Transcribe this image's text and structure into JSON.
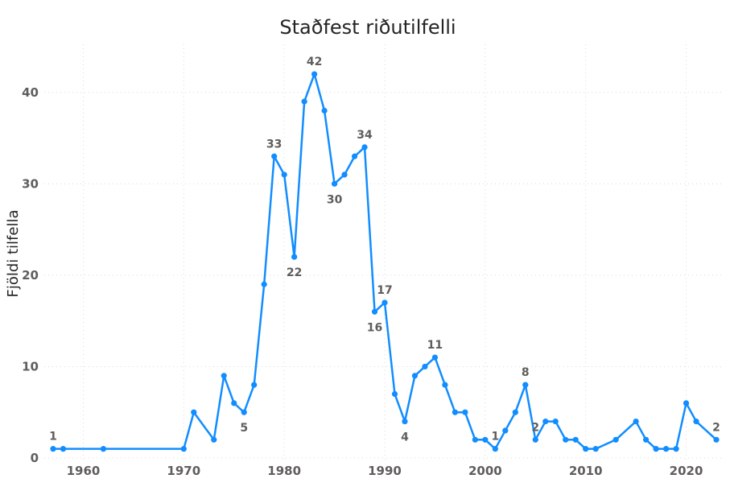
{
  "chart_data": {
    "type": "line",
    "title": "Staðfest riðutilfelli",
    "xlabel": "",
    "ylabel": "Fjöldi tilfella",
    "xlim": [
      1957,
      2023
    ],
    "ylim": [
      0,
      45
    ],
    "xticks": [
      1960,
      1970,
      1980,
      1990,
      2000,
      2010,
      2020
    ],
    "yticks": [
      0,
      10,
      20,
      30,
      40
    ],
    "grid": true,
    "legend": "none",
    "color": "#118dff",
    "series": [
      {
        "points": [
          {
            "x": 1957,
            "y": 1
          },
          {
            "x": 1958,
            "y": 1
          },
          {
            "x": 1962,
            "y": 1
          },
          {
            "x": 1970,
            "y": 1
          },
          {
            "x": 1971,
            "y": 5
          },
          {
            "x": 1973,
            "y": 2
          },
          {
            "x": 1974,
            "y": 9
          },
          {
            "x": 1975,
            "y": 6
          },
          {
            "x": 1976,
            "y": 5
          },
          {
            "x": 1977,
            "y": 8
          },
          {
            "x": 1978,
            "y": 19
          },
          {
            "x": 1979,
            "y": 33
          },
          {
            "x": 1980,
            "y": 31
          },
          {
            "x": 1981,
            "y": 22
          },
          {
            "x": 1982,
            "y": 39
          },
          {
            "x": 1983,
            "y": 42
          },
          {
            "x": 1984,
            "y": 38
          },
          {
            "x": 1985,
            "y": 30
          },
          {
            "x": 1986,
            "y": 31
          },
          {
            "x": 1987,
            "y": 33
          },
          {
            "x": 1988,
            "y": 34
          },
          {
            "x": 1989,
            "y": 16
          },
          {
            "x": 1990,
            "y": 17
          },
          {
            "x": 1991,
            "y": 7
          },
          {
            "x": 1992,
            "y": 4
          },
          {
            "x": 1993,
            "y": 9
          },
          {
            "x": 1994,
            "y": 10
          },
          {
            "x": 1995,
            "y": 11
          },
          {
            "x": 1996,
            "y": 8
          },
          {
            "x": 1997,
            "y": 5
          },
          {
            "x": 1998,
            "y": 5
          },
          {
            "x": 1999,
            "y": 2
          },
          {
            "x": 2000,
            "y": 2
          },
          {
            "x": 2001,
            "y": 1
          },
          {
            "x": 2002,
            "y": 3
          },
          {
            "x": 2003,
            "y": 5
          },
          {
            "x": 2004,
            "y": 8
          },
          {
            "x": 2005,
            "y": 2
          },
          {
            "x": 2006,
            "y": 4
          },
          {
            "x": 2007,
            "y": 4
          },
          {
            "x": 2008,
            "y": 2
          },
          {
            "x": 2009,
            "y": 2
          },
          {
            "x": 2010,
            "y": 1
          },
          {
            "x": 2011,
            "y": 1
          },
          {
            "x": 2013,
            "y": 2
          },
          {
            "x": 2015,
            "y": 4
          },
          {
            "x": 2016,
            "y": 2
          },
          {
            "x": 2017,
            "y": 1
          },
          {
            "x": 2018,
            "y": 1
          },
          {
            "x": 2019,
            "y": 1
          },
          {
            "x": 2020,
            "y": 6
          },
          {
            "x": 2021,
            "y": 4
          },
          {
            "x": 2023,
            "y": 2
          }
        ]
      }
    ],
    "data_labels": [
      {
        "x": 1957,
        "value": "1",
        "position": "above"
      },
      {
        "x": 1976,
        "value": "5",
        "position": "below"
      },
      {
        "x": 1979,
        "value": "33",
        "position": "above"
      },
      {
        "x": 1981,
        "value": "22",
        "position": "below"
      },
      {
        "x": 1983,
        "value": "42",
        "position": "above"
      },
      {
        "x": 1985,
        "value": "30",
        "position": "below"
      },
      {
        "x": 1988,
        "value": "34",
        "position": "above"
      },
      {
        "x": 1989,
        "value": "16",
        "position": "below"
      },
      {
        "x": 1990,
        "value": "17",
        "position": "above"
      },
      {
        "x": 1992,
        "value": "4",
        "position": "below"
      },
      {
        "x": 1995,
        "value": "11",
        "position": "above"
      },
      {
        "x": 2001,
        "value": "1",
        "position": "above"
      },
      {
        "x": 2004,
        "value": "8",
        "position": "above"
      },
      {
        "x": 2005,
        "value": "2",
        "position": "above"
      },
      {
        "x": 2023,
        "value": "2",
        "position": "above"
      }
    ]
  }
}
